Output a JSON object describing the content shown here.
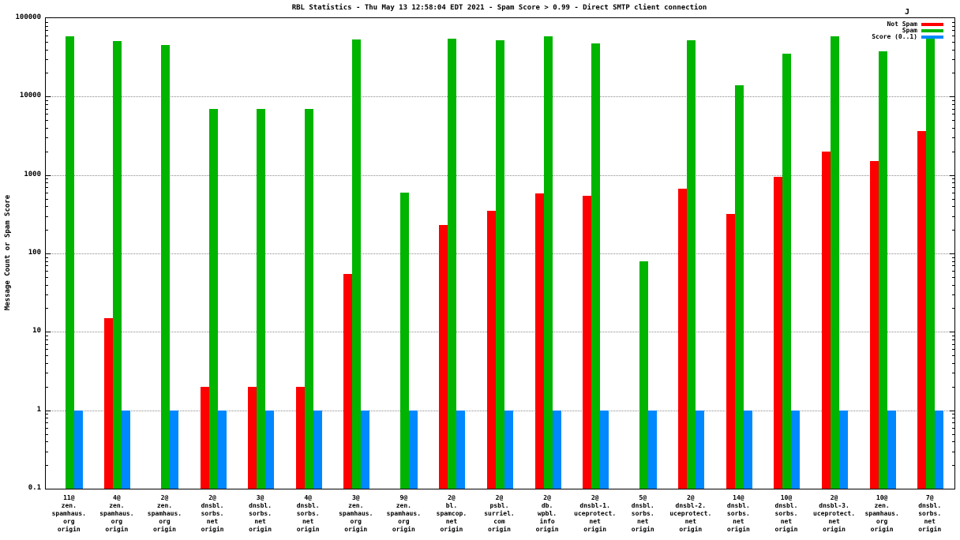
{
  "title": "RBL Statistics - Thu May 13 12:58:04 EDT 2021 - Spam Score > 0.99 - Direct SMTP client connection",
  "ylabel": "Message Count or Spam Score",
  "corner_mark": "J",
  "legend": [
    {
      "label": "Not Spam",
      "color": "#ff0000"
    },
    {
      "label": "Spam",
      "color": "#00b400"
    },
    {
      "label": "Score (0..1)",
      "color": "#0088ff"
    }
  ],
  "chart_data": {
    "type": "bar",
    "scale": "log",
    "grid": "horizontal-dotted",
    "legend_position": "top-right",
    "ylim": [
      0.1,
      100000
    ],
    "yticks": [
      {
        "v": 100000,
        "label": "100000"
      },
      {
        "v": 10000,
        "label": "10000"
      },
      {
        "v": 1000,
        "label": "1000"
      },
      {
        "v": 100,
        "label": "100"
      },
      {
        "v": 10,
        "label": "10"
      },
      {
        "v": 1,
        "label": "1"
      },
      {
        "v": 0.1,
        "label": "0.1"
      }
    ],
    "categories": [
      [
        "11@",
        "zen.",
        "spamhaus.",
        "org",
        "origin"
      ],
      [
        "4@",
        "zen.",
        "spamhaus.",
        "org",
        "origin"
      ],
      [
        "2@",
        "zen.",
        "spamhaus.",
        "org",
        "origin"
      ],
      [
        "2@",
        "dnsbl.",
        "sorbs.",
        "net",
        "origin"
      ],
      [
        "3@",
        "dnsbl.",
        "sorbs.",
        "net",
        "origin"
      ],
      [
        "4@",
        "dnsbl.",
        "sorbs.",
        "net",
        "origin"
      ],
      [
        "3@",
        "zen.",
        "spamhaus.",
        "org",
        "origin"
      ],
      [
        "9@",
        "zen.",
        "spamhaus.",
        "org",
        "origin"
      ],
      [
        "2@",
        "bl.",
        "spamcop.",
        "net",
        "origin"
      ],
      [
        "2@",
        "psbl.",
        "surriel.",
        "com",
        "origin"
      ],
      [
        "2@",
        "db.",
        "wpbl.",
        "info",
        "origin"
      ],
      [
        "2@",
        "dnsbl-1.",
        "uceprotect.",
        "net",
        "origin"
      ],
      [
        "5@",
        "dnsbl.",
        "sorbs.",
        "net",
        "origin"
      ],
      [
        "2@",
        "dnsbl-2.",
        "uceprotect.",
        "net",
        "origin"
      ],
      [
        "14@",
        "dnsbl.",
        "sorbs.",
        "net",
        "origin"
      ],
      [
        "10@",
        "dnsbl.",
        "sorbs.",
        "net",
        "origin"
      ],
      [
        "2@",
        "dnsbl-3.",
        "uceprotect.",
        "net",
        "origin"
      ],
      [
        "10@",
        "zen.",
        "spamhaus.",
        "org",
        "origin"
      ],
      [
        "7@",
        "dnsbl.",
        "sorbs.",
        "net",
        "origin"
      ]
    ],
    "series": [
      {
        "name": "Not Spam",
        "color": "#ff0000",
        "values": [
          null,
          15,
          null,
          2,
          2,
          2,
          55,
          null,
          230,
          350,
          580,
          540,
          null,
          670,
          320,
          950,
          2000,
          1500,
          3600
        ]
      },
      {
        "name": "Spam",
        "color": "#00b400",
        "values": [
          58000,
          51000,
          45000,
          7000,
          7000,
          7000,
          54000,
          600,
          55000,
          52000,
          59000,
          48000,
          80,
          52000,
          14000,
          35000,
          58000,
          38000,
          55000
        ]
      },
      {
        "name": "Score (0..1)",
        "color": "#0088ff",
        "values": [
          1,
          1,
          1,
          1,
          1,
          1,
          1,
          1,
          1,
          1,
          1,
          1,
          1,
          1,
          1,
          1,
          1,
          1,
          1
        ]
      }
    ]
  }
}
